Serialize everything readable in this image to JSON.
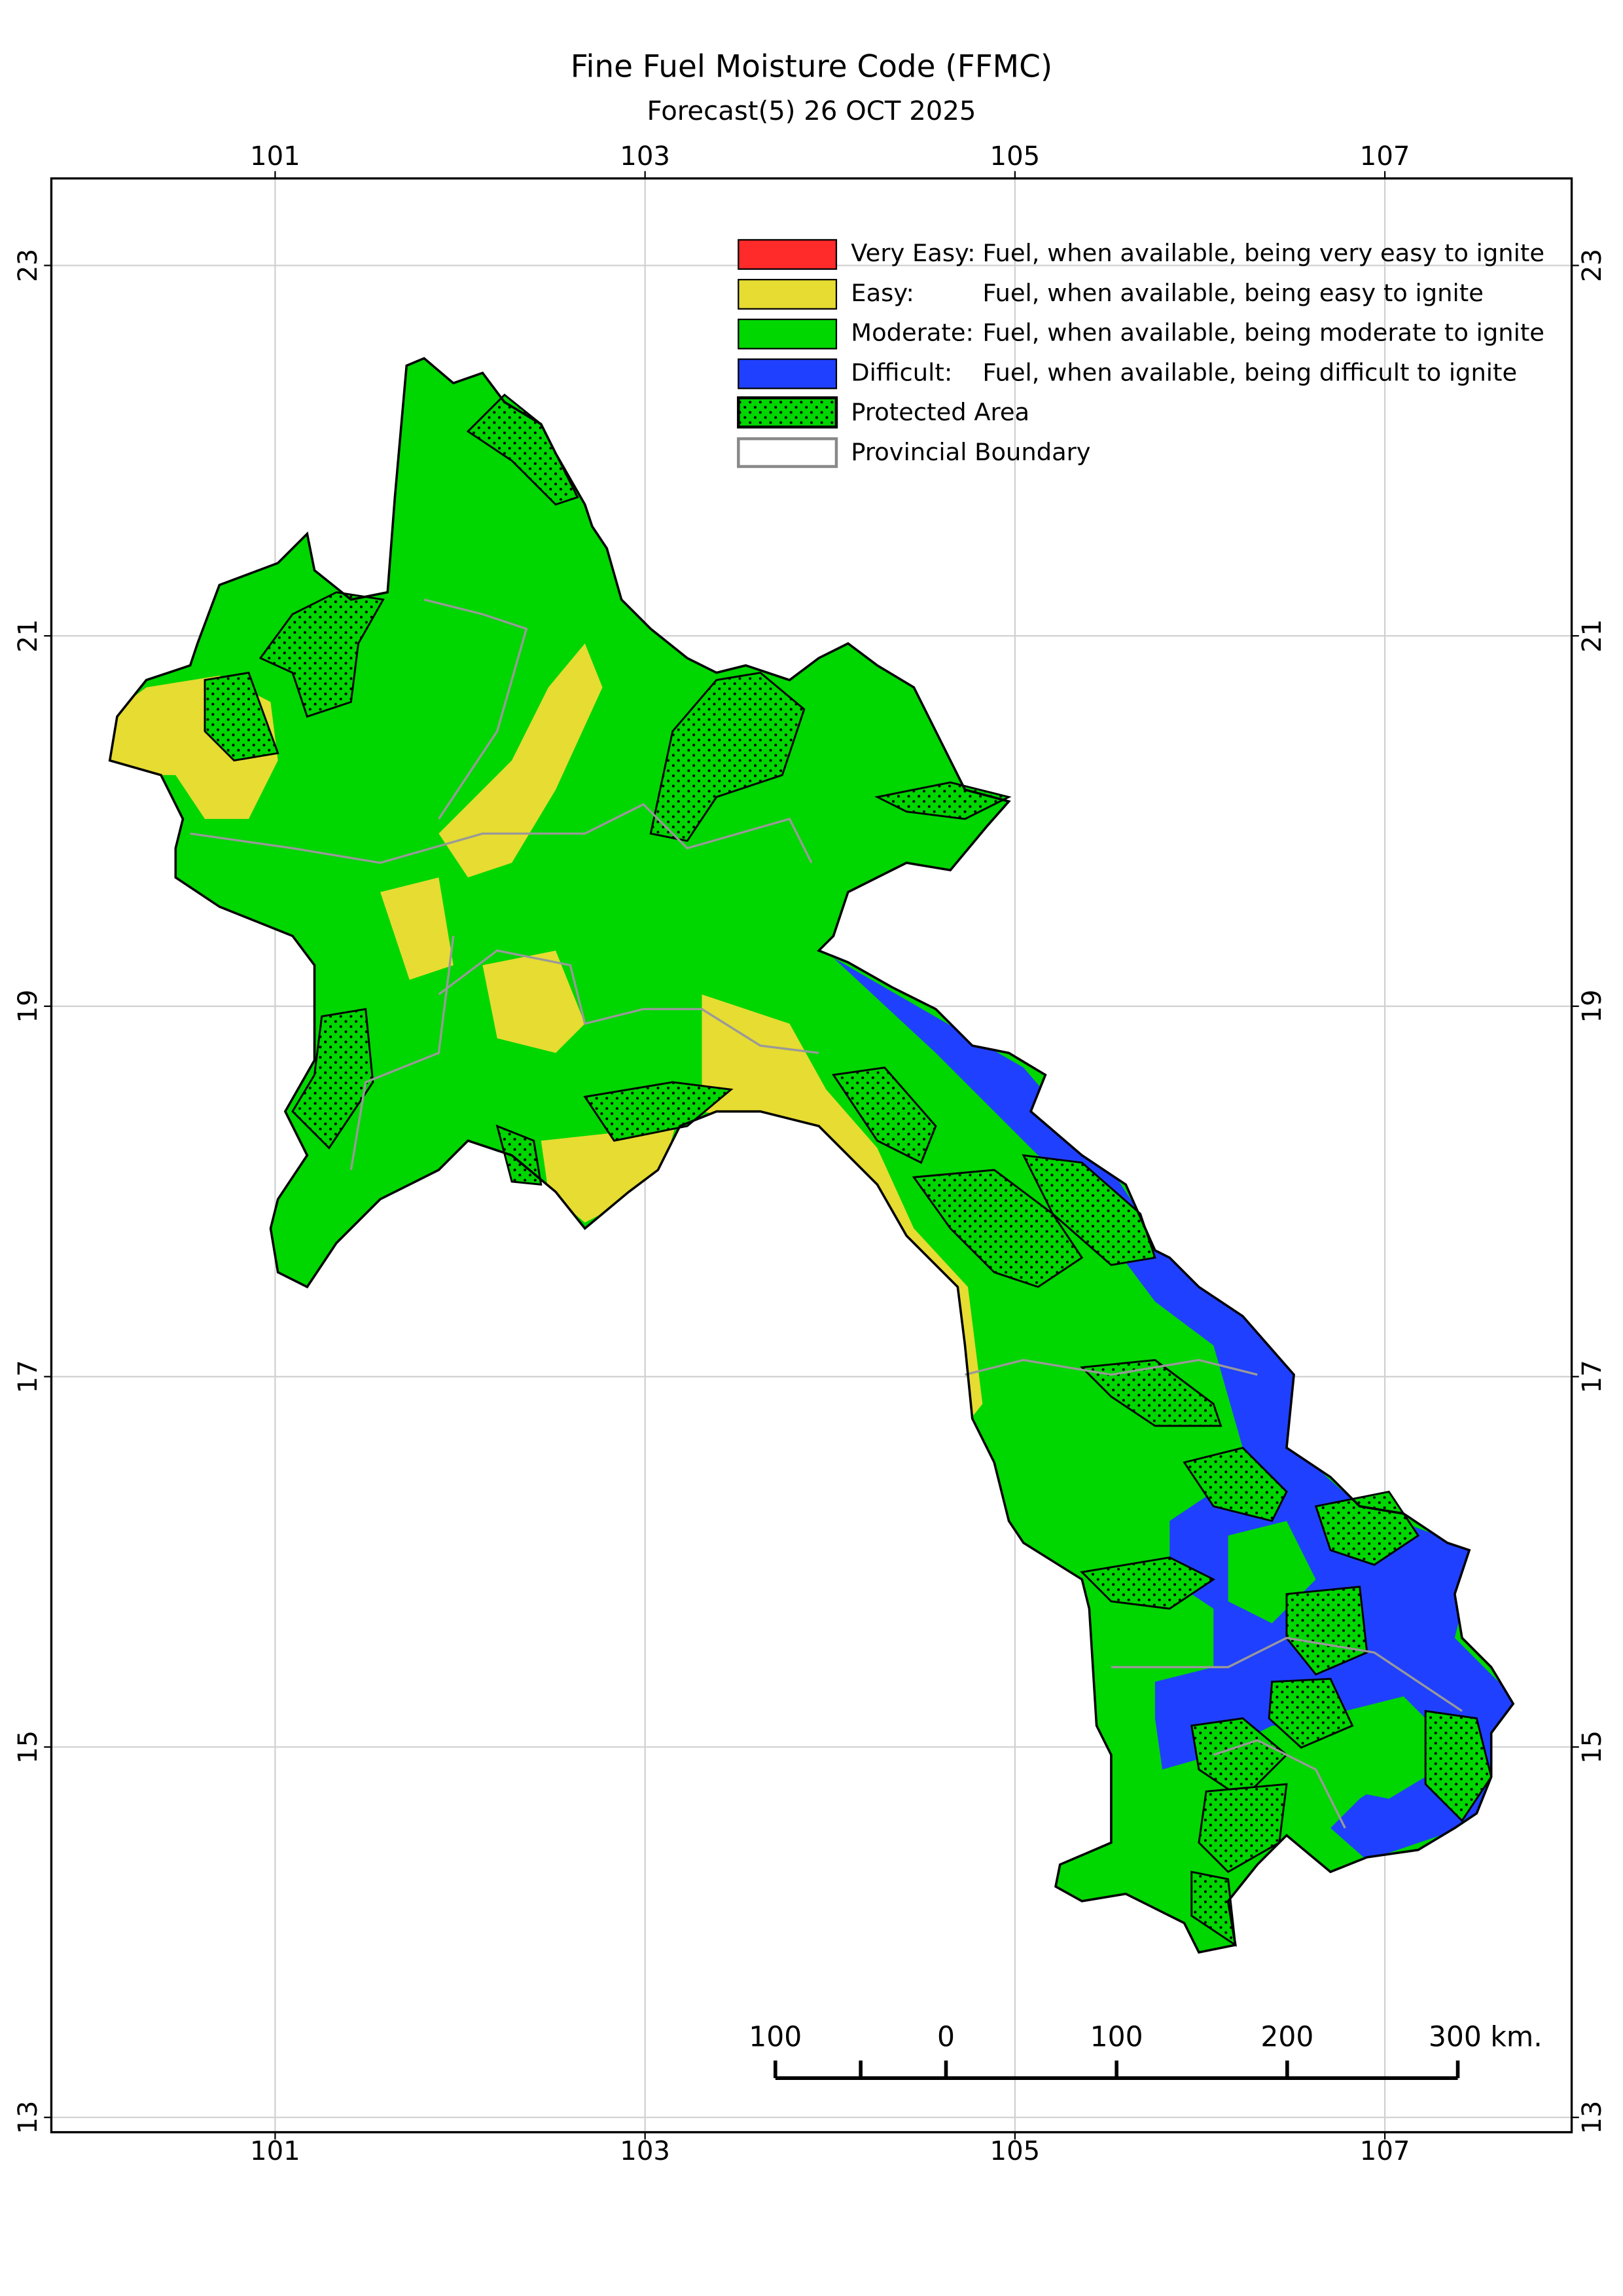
{
  "chart_data": {
    "type": "map",
    "title": "Fine Fuel Moisture Code (FFMC)",
    "subtitle": "Forecast(5) 26 OCT 2025",
    "xlim": [
      99.79,
      108.01
    ],
    "ylim": [
      12.92,
      23.47
    ],
    "xticks": [
      101,
      103,
      105,
      107
    ],
    "yticks": [
      13,
      15,
      17,
      19,
      21,
      23
    ],
    "grid": true,
    "legend": [
      {
        "label": "Very Easy:",
        "description": "Fuel, when available, being very easy to ignite",
        "color": "#ff2a2a"
      },
      {
        "label": "Easy:",
        "description": "Fuel, when available, being easy to ignite",
        "color": "#e6dc32"
      },
      {
        "label": "Moderate:",
        "description": "Fuel, when available, being moderate to ignite",
        "color": "#00d600"
      },
      {
        "label": "Difficult:",
        "description": "Fuel, when available, being difficult to ignite",
        "color": "#2040ff"
      },
      {
        "label": "Protected Area"
      },
      {
        "label": "Provincial Boundary"
      }
    ],
    "scale_bar": {
      "ticks": [
        {
          "value": -100,
          "label": "100"
        },
        0,
        100,
        200,
        {
          "value": 300,
          "label": "300 km."
        }
      ]
    }
  }
}
